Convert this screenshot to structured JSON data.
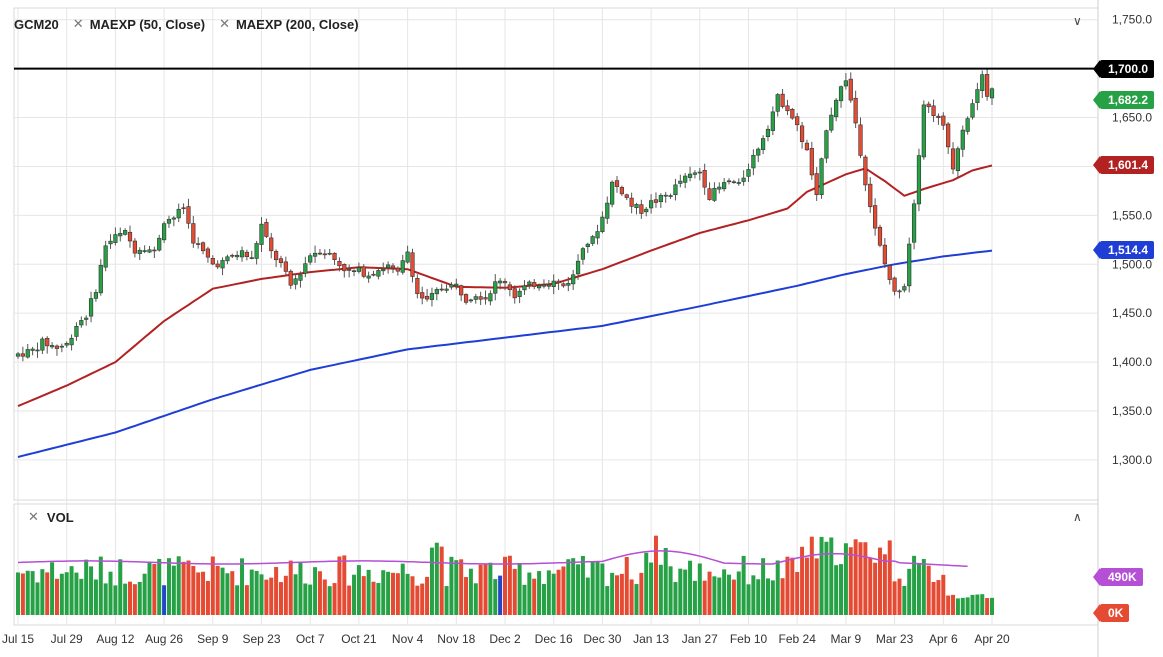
{
  "legend": {
    "symbol": "GCM20",
    "ma1": "MAEXP (50, Close)",
    "ma2": "MAEXP (200, Close)",
    "vol": "VOL"
  },
  "tags": {
    "resistance": "1,700.0",
    "last": "1,682.2",
    "ma50": "1,601.4",
    "ma200": "1,514.4",
    "vol_avg": "490K",
    "vol_zero": "0K"
  },
  "colors": {
    "up": "#26a145",
    "down": "#e54a33",
    "ma50": "#b22222",
    "ma200": "#1f3ed6",
    "vol_avg": "#b44fd6",
    "resistance": "#000000",
    "grid": "#e6e6e6"
  },
  "chart_data": {
    "type": "candlestick",
    "y_ticks": [
      "1,300.0",
      "1,350.0",
      "1,400.0",
      "1,450.0",
      "1,500.0",
      "1,550.0",
      "1,600.0",
      "1,650.0",
      "1,700.0",
      "1,750.0"
    ],
    "y_tick_values": [
      1300,
      1350,
      1400,
      1450,
      1500,
      1550,
      1600,
      1650,
      1700,
      1750
    ],
    "ylim": [
      1259,
      1762
    ],
    "x_ticks": [
      "Jul 15",
      "Jul 29",
      "Aug 12",
      "Aug 26",
      "Sep 9",
      "Sep 23",
      "Oct 7",
      "Oct 21",
      "Nov 4",
      "Nov 18",
      "Dec 2",
      "Dec 16",
      "Dec 30",
      "Jan 13",
      "Jan 27",
      "Feb 10",
      "Feb 24",
      "Mar 9",
      "Mar 23",
      "Apr 6",
      "Apr 20"
    ],
    "x_tick_index": [
      0,
      10,
      20,
      30,
      40,
      50,
      60,
      70,
      80,
      90,
      100,
      110,
      120,
      130,
      140,
      150,
      160,
      170,
      180,
      190,
      200
    ],
    "horizontal_line": 1700,
    "price_anchors": [
      [
        0,
        1408
      ],
      [
        3,
        1412
      ],
      [
        5,
        1420
      ],
      [
        8,
        1415
      ],
      [
        10,
        1418
      ],
      [
        12,
        1438
      ],
      [
        14,
        1448
      ],
      [
        16,
        1475
      ],
      [
        18,
        1520
      ],
      [
        20,
        1528
      ],
      [
        22,
        1532
      ],
      [
        24,
        1515
      ],
      [
        26,
        1518
      ],
      [
        28,
        1512
      ],
      [
        30,
        1545
      ],
      [
        32,
        1548
      ],
      [
        34,
        1558
      ],
      [
        36,
        1525
      ],
      [
        38,
        1512
      ],
      [
        40,
        1500
      ],
      [
        42,
        1502
      ],
      [
        44,
        1508
      ],
      [
        46,
        1512
      ],
      [
        48,
        1505
      ],
      [
        50,
        1540
      ],
      [
        52,
        1512
      ],
      [
        54,
        1500
      ],
      [
        56,
        1478
      ],
      [
        58,
        1492
      ],
      [
        60,
        1510
      ],
      [
        62,
        1515
      ],
      [
        64,
        1510
      ],
      [
        66,
        1500
      ],
      [
        68,
        1492
      ],
      [
        70,
        1493
      ],
      [
        72,
        1490
      ],
      [
        74,
        1495
      ],
      [
        76,
        1498
      ],
      [
        78,
        1490
      ],
      [
        80,
        1513
      ],
      [
        82,
        1470
      ],
      [
        84,
        1462
      ],
      [
        86,
        1472
      ],
      [
        88,
        1478
      ],
      [
        90,
        1478
      ],
      [
        92,
        1465
      ],
      [
        94,
        1470
      ],
      [
        96,
        1466
      ],
      [
        98,
        1480
      ],
      [
        100,
        1483
      ],
      [
        102,
        1468
      ],
      [
        104,
        1476
      ],
      [
        106,
        1480
      ],
      [
        108,
        1482
      ],
      [
        110,
        1482
      ],
      [
        112,
        1478
      ],
      [
        114,
        1488
      ],
      [
        116,
        1520
      ],
      [
        118,
        1525
      ],
      [
        120,
        1548
      ],
      [
        122,
        1583
      ],
      [
        124,
        1575
      ],
      [
        126,
        1560
      ],
      [
        128,
        1555
      ],
      [
        130,
        1563
      ],
      [
        132,
        1567
      ],
      [
        134,
        1573
      ],
      [
        136,
        1585
      ],
      [
        138,
        1590
      ],
      [
        140,
        1595
      ],
      [
        142,
        1570
      ],
      [
        144,
        1578
      ],
      [
        146,
        1585
      ],
      [
        148,
        1580
      ],
      [
        150,
        1600
      ],
      [
        152,
        1620
      ],
      [
        154,
        1642
      ],
      [
        156,
        1670
      ],
      [
        158,
        1660
      ],
      [
        160,
        1640
      ],
      [
        162,
        1615
      ],
      [
        164,
        1568
      ],
      [
        166,
        1640
      ],
      [
        168,
        1670
      ],
      [
        170,
        1690
      ],
      [
        172,
        1645
      ],
      [
        174,
        1585
      ],
      [
        176,
        1535
      ],
      [
        178,
        1500
      ],
      [
        180,
        1470
      ],
      [
        182,
        1480
      ],
      [
        184,
        1565
      ],
      [
        186,
        1665
      ],
      [
        188,
        1655
      ],
      [
        190,
        1640
      ],
      [
        192,
        1600
      ],
      [
        194,
        1640
      ],
      [
        196,
        1664
      ],
      [
        198,
        1690
      ],
      [
        199,
        1670
      ],
      [
        200,
        1682
      ]
    ],
    "ma50_anchors": [
      [
        0,
        1355
      ],
      [
        10,
        1376
      ],
      [
        20,
        1400
      ],
      [
        30,
        1442
      ],
      [
        40,
        1475
      ],
      [
        50,
        1485
      ],
      [
        60,
        1492
      ],
      [
        70,
        1497
      ],
      [
        80,
        1495
      ],
      [
        90,
        1477
      ],
      [
        100,
        1476
      ],
      [
        110,
        1480
      ],
      [
        120,
        1495
      ],
      [
        130,
        1514
      ],
      [
        140,
        1532
      ],
      [
        150,
        1545
      ],
      [
        158,
        1557
      ],
      [
        162,
        1574
      ],
      [
        166,
        1583
      ],
      [
        170,
        1592
      ],
      [
        174,
        1598
      ],
      [
        178,
        1585
      ],
      [
        182,
        1570
      ],
      [
        186,
        1577
      ],
      [
        192,
        1586
      ],
      [
        196,
        1596
      ],
      [
        200,
        1601
      ]
    ],
    "ma200_anchors": [
      [
        0,
        1303
      ],
      [
        20,
        1328
      ],
      [
        40,
        1362
      ],
      [
        60,
        1392
      ],
      [
        80,
        1413
      ],
      [
        100,
        1425
      ],
      [
        120,
        1437
      ],
      [
        140,
        1457
      ],
      [
        160,
        1478
      ],
      [
        170,
        1490
      ],
      [
        180,
        1500
      ],
      [
        190,
        1508
      ],
      [
        200,
        1514
      ]
    ],
    "volume": {
      "ylim": [
        0,
        1000000
      ],
      "avg_value": 490000
    }
  }
}
